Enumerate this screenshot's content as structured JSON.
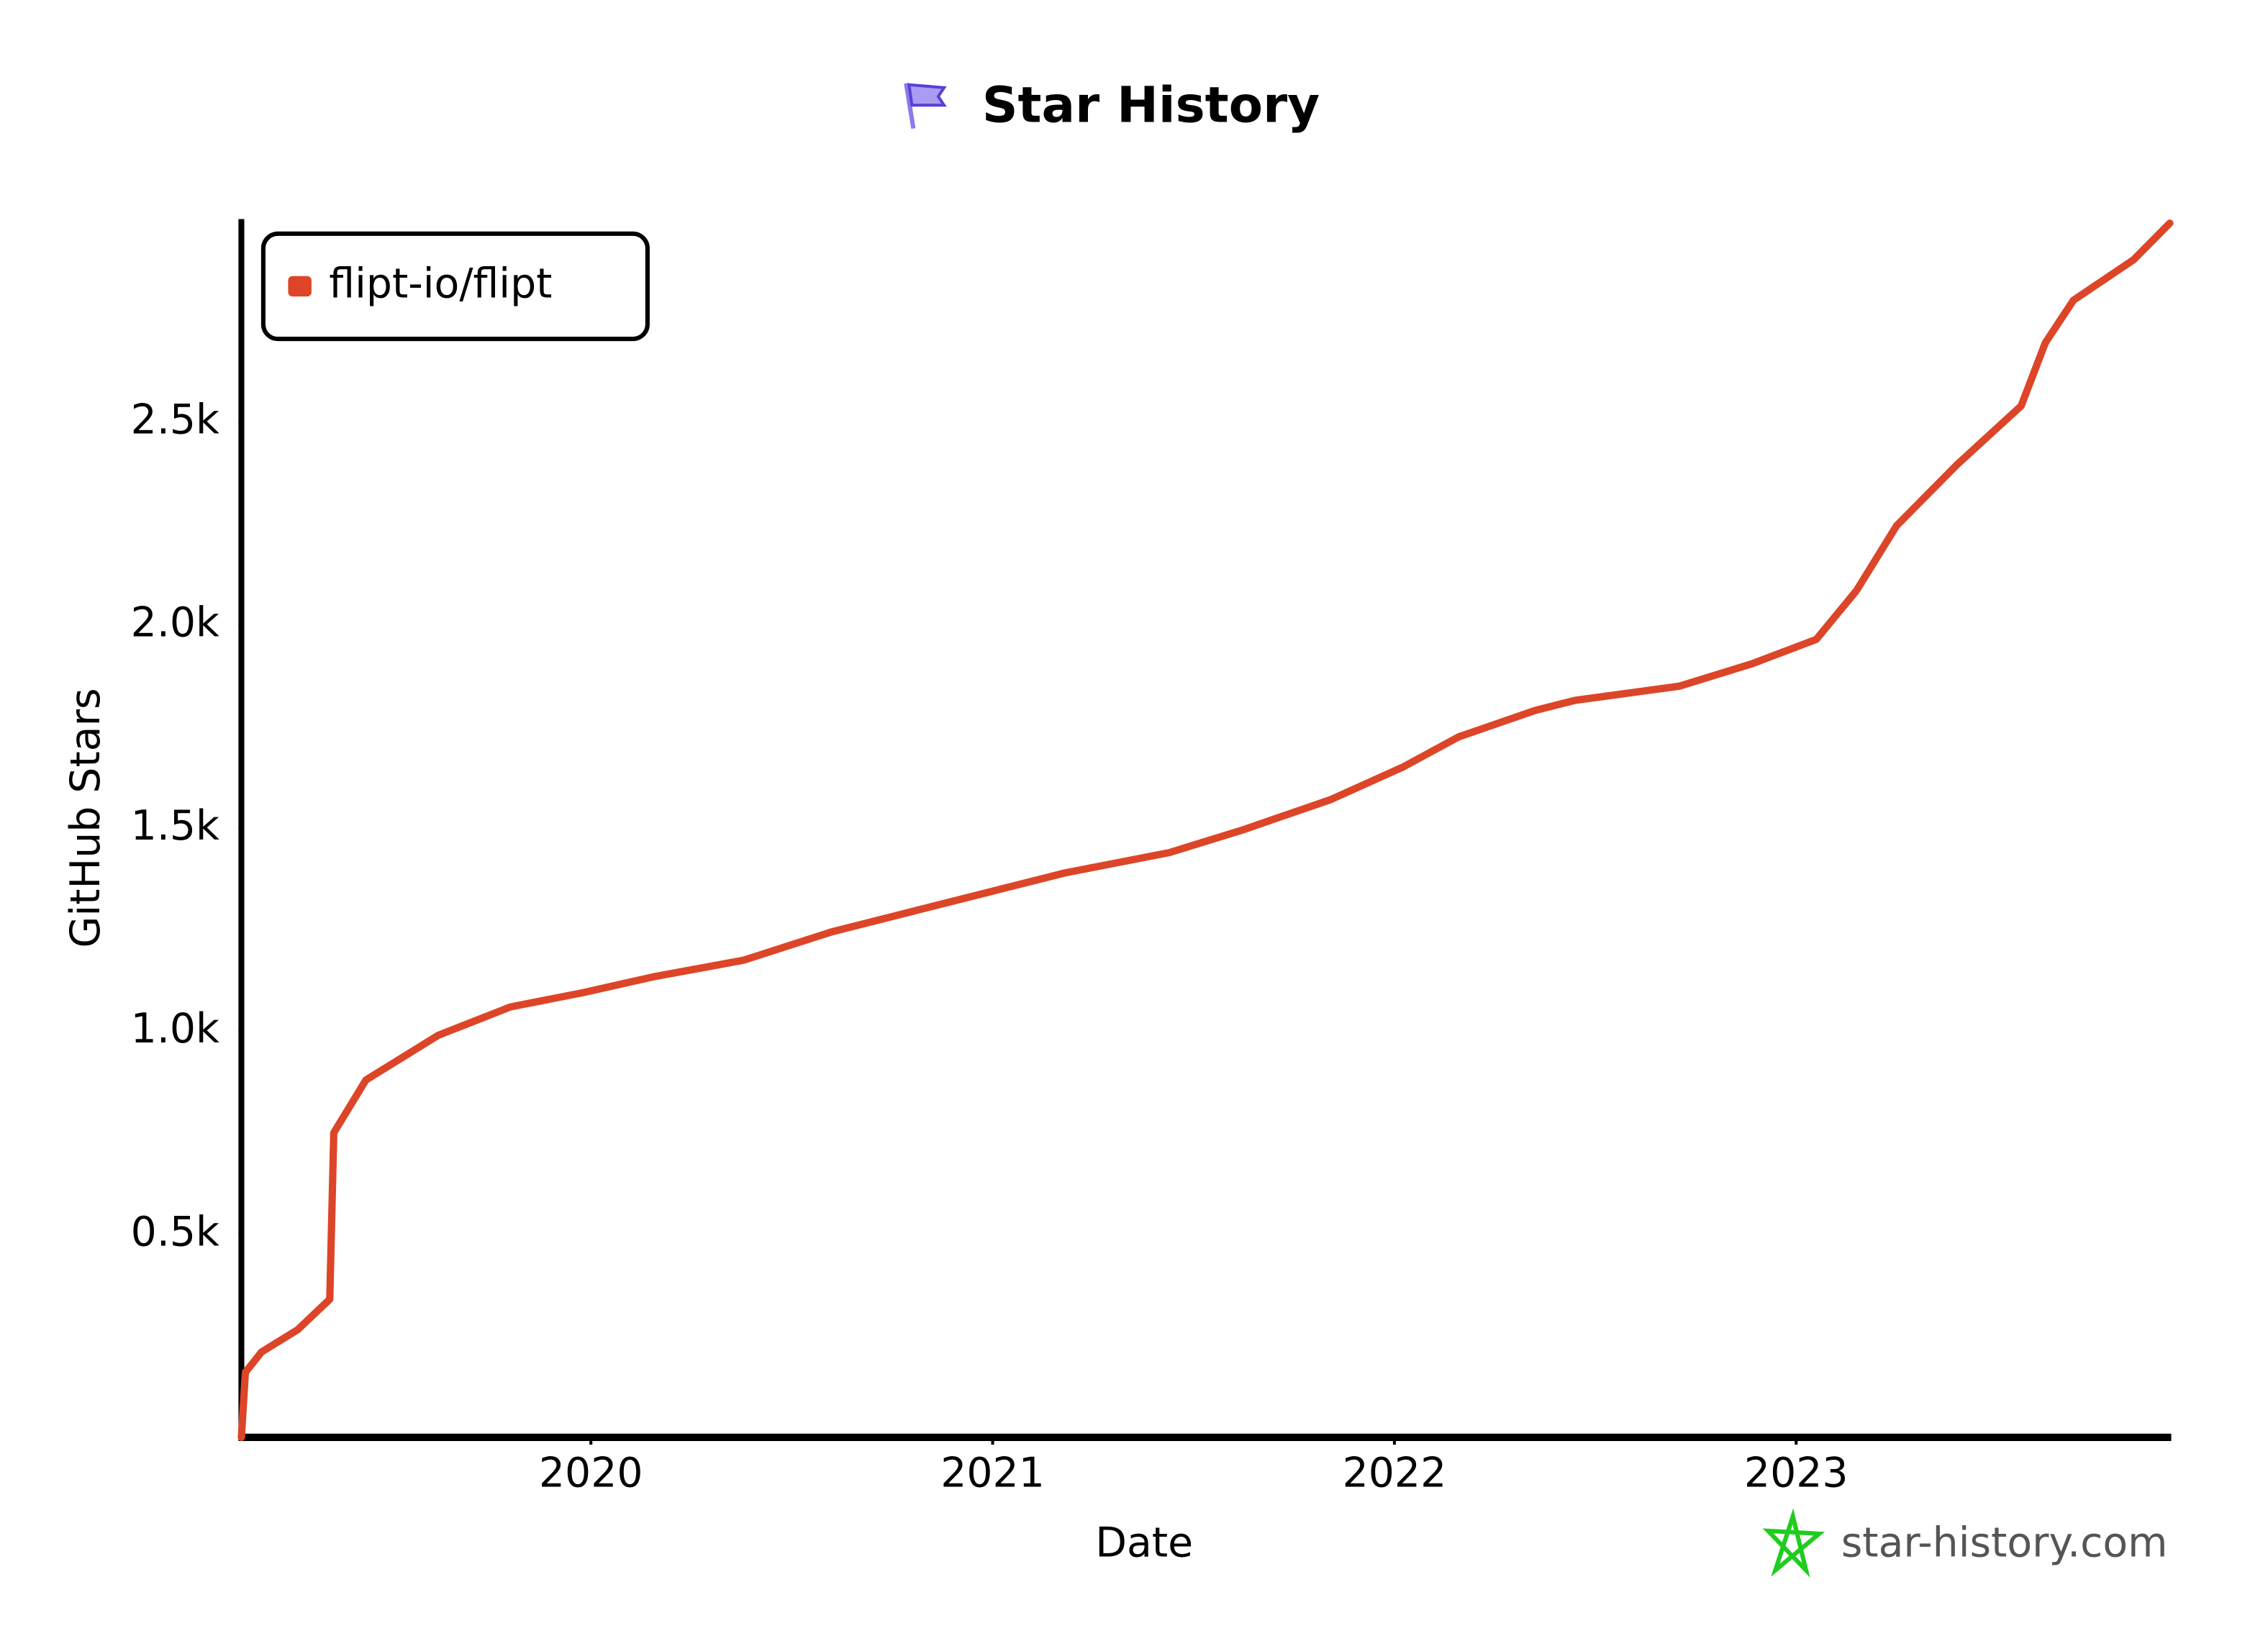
{
  "chart_data": {
    "type": "line",
    "title": "Star History",
    "xlabel": "Date",
    "ylabel": "GitHub Stars",
    "x": [
      2019.13,
      2019.14,
      2019.18,
      2019.27,
      2019.35,
      2019.36,
      2019.44,
      2019.62,
      2019.8,
      2019.98,
      2020.16,
      2020.38,
      2020.6,
      2020.82,
      2021.0,
      2021.18,
      2021.44,
      2021.62,
      2021.84,
      2022.02,
      2022.16,
      2022.35,
      2022.45,
      2022.71,
      2022.89,
      2023.05,
      2023.15,
      2023.25,
      2023.4,
      2023.56,
      2023.62,
      2023.69,
      2023.84,
      2023.93
    ],
    "series": [
      {
        "name": "flipt-io/flipt",
        "color": "#dd4528",
        "values": [
          0,
          160,
          210,
          265,
          340,
          750,
          880,
          990,
          1060,
          1095,
          1135,
          1175,
          1245,
          1300,
          1345,
          1390,
          1440,
          1495,
          1570,
          1650,
          1725,
          1790,
          1815,
          1850,
          1905,
          1965,
          2085,
          2245,
          2395,
          2540,
          2695,
          2800,
          2900,
          2990
        ]
      }
    ],
    "xlim": [
      2019.13,
      2023.93
    ],
    "xticks": [
      2020,
      2021,
      2022,
      2023
    ],
    "ylim": [
      0,
      3000
    ],
    "yticks": [
      {
        "value": 500,
        "label": "0.5k"
      },
      {
        "value": 1000,
        "label": "1.0k"
      },
      {
        "value": 1500,
        "label": "1.5k"
      },
      {
        "value": 2000,
        "label": "2.0k"
      },
      {
        "value": 2500,
        "label": "2.5k"
      }
    ],
    "grid": false,
    "legend": "upper left",
    "watermark": "star-history.com"
  }
}
